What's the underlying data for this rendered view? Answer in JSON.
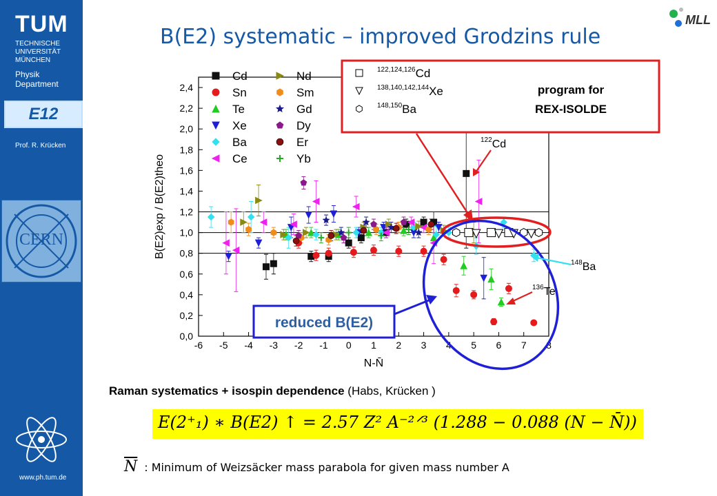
{
  "sidebar": {
    "logo": "TUM",
    "university_lines": [
      "TECHNISCHE",
      "UNIVERSITÄT",
      "MÜNCHEN"
    ],
    "dept_lines": [
      "Physik",
      "Department"
    ],
    "group_logo": "E12",
    "professor": "Prof. R. Krücken",
    "cern_logo": "CERN",
    "website": "www.ph.tum.de"
  },
  "header": {
    "title": "B(E2) systematic – improved Grodzins rule",
    "mll_logo": "MLL"
  },
  "colors": {
    "accent_blue": "#1559a6",
    "red_box": "#e02020",
    "blue_ellipse": "#1f1fd6",
    "formula_bg": "#ffff00"
  },
  "chart_data": {
    "type": "scatter",
    "xlabel": "N-N̄",
    "ylabel": "B(E2)exp / B(E2)theo",
    "xlim": [
      -6,
      8
    ],
    "ylim": [
      0.0,
      2.5
    ],
    "x_ticks": [
      -6,
      -5,
      -4,
      -3,
      -2,
      -1,
      0,
      1,
      2,
      3,
      4,
      5,
      6,
      7,
      8
    ],
    "y_ticks": [
      0.0,
      0.2,
      0.4,
      0.6,
      0.8,
      1.0,
      1.2,
      1.4,
      1.6,
      1.8,
      2.0,
      2.2,
      2.4
    ],
    "reference_lines": [
      0.8,
      1.0,
      1.2
    ],
    "legend": [
      {
        "name": "Cd",
        "marker": "square",
        "color": "#111111"
      },
      {
        "name": "Sn",
        "marker": "circle",
        "color": "#e41a1c"
      },
      {
        "name": "Te",
        "marker": "triangle-up",
        "color": "#22cc22"
      },
      {
        "name": "Xe",
        "marker": "triangle-down",
        "color": "#1f1fd6"
      },
      {
        "name": "Ba",
        "marker": "diamond",
        "color": "#33e0f0"
      },
      {
        "name": "Ce",
        "marker": "triangle-left",
        "color": "#ee22ee"
      },
      {
        "name": "Nd",
        "marker": "triangle-right",
        "color": "#8a8a10"
      },
      {
        "name": "Sm",
        "marker": "hexagon",
        "color": "#f08c1c"
      },
      {
        "name": "Gd",
        "marker": "star",
        "color": "#1a1a8c"
      },
      {
        "name": "Dy",
        "marker": "pentagon",
        "color": "#8a1a8a"
      },
      {
        "name": "Er",
        "marker": "sphere",
        "color": "#8a1010"
      },
      {
        "name": "Yb",
        "marker": "plus",
        "color": "#22aa22"
      }
    ],
    "series": [
      {
        "name": "Cd",
        "points": [
          [
            -3.3,
            0.67,
            0.12
          ],
          [
            -3.0,
            0.7,
            0.1
          ],
          [
            -1.5,
            0.77,
            0.05
          ],
          [
            -0.8,
            0.77,
            0.05
          ],
          [
            0.0,
            0.9,
            0.05
          ],
          [
            0.5,
            0.95,
            0.05
          ],
          [
            1.5,
            1.0,
            0.05
          ],
          [
            2.3,
            1.08,
            0.05
          ],
          [
            3.0,
            1.1,
            0.05
          ],
          [
            3.4,
            1.1,
            0.1
          ],
          [
            4.7,
            1.57,
            0.72
          ]
        ]
      },
      {
        "name": "Sn",
        "points": [
          [
            -2.0,
            0.9,
            0.05
          ],
          [
            -1.3,
            0.78,
            0.05
          ],
          [
            -0.8,
            0.8,
            0.05
          ],
          [
            0.2,
            0.81,
            0.05
          ],
          [
            1.0,
            0.83,
            0.05
          ],
          [
            2.0,
            0.82,
            0.05
          ],
          [
            3.0,
            0.82,
            0.05
          ],
          [
            3.8,
            0.74,
            0.05
          ],
          [
            4.3,
            0.44,
            0.06
          ],
          [
            5.0,
            0.4,
            0.04
          ],
          [
            5.8,
            0.14,
            0.03
          ],
          [
            6.4,
            0.46,
            0.05
          ],
          [
            7.4,
            0.13,
            0.02
          ]
        ]
      },
      {
        "name": "Te",
        "points": [
          [
            -2.5,
            0.98,
            0.05
          ],
          [
            -1.5,
            1.0,
            0.05
          ],
          [
            -0.4,
            0.98,
            0.05
          ],
          [
            0.8,
            1.0,
            0.05
          ],
          [
            2.2,
            1.02,
            0.05
          ],
          [
            3.4,
            0.95,
            0.05
          ],
          [
            4.6,
            0.68,
            0.09
          ],
          [
            5.7,
            0.55,
            0.1
          ],
          [
            6.1,
            0.33,
            0.04
          ]
        ]
      },
      {
        "name": "Xe",
        "points": [
          [
            -4.8,
            0.77,
            0.05
          ],
          [
            -3.6,
            0.9,
            0.05
          ],
          [
            -2.3,
            1.05,
            0.1
          ],
          [
            -1.6,
            1.17,
            0.08
          ],
          [
            -0.6,
            1.18,
            0.08
          ],
          [
            0.4,
            1.0,
            0.05
          ],
          [
            1.4,
            1.05,
            0.05
          ],
          [
            2.6,
            1.0,
            0.05
          ],
          [
            3.6,
            1.05,
            0.05
          ],
          [
            5.4,
            0.56,
            0.2
          ]
        ]
      },
      {
        "name": "Ba",
        "points": [
          [
            -5.5,
            1.15,
            0.1
          ],
          [
            -3.9,
            1.15,
            0.15
          ],
          [
            -2.4,
            0.95,
            0.1
          ],
          [
            -1.3,
            0.98,
            0.05
          ],
          [
            0.3,
            1.0,
            0.05
          ],
          [
            1.3,
            1.0,
            0.05
          ],
          [
            2.6,
            1.05,
            0.05
          ],
          [
            3.5,
            0.98,
            0.08
          ],
          [
            4.0,
            1.0,
            0.05
          ],
          [
            5.1,
            0.87,
            0.08
          ],
          [
            6.2,
            1.1,
            0.05
          ],
          [
            7.4,
            0.78,
            0.06
          ]
        ]
      },
      {
        "name": "Ce",
        "points": [
          [
            -4.9,
            0.9,
            0.3
          ],
          [
            -4.5,
            0.83,
            0.4
          ],
          [
            -3.4,
            1.1,
            0.1
          ],
          [
            -2.2,
            1.08,
            0.1
          ],
          [
            -1.3,
            1.3,
            0.2
          ],
          [
            0.3,
            1.25,
            0.1
          ],
          [
            1.5,
            1.0,
            0.05
          ],
          [
            2.5,
            1.1,
            0.05
          ],
          [
            3.0,
            1.05,
            0.05
          ],
          [
            3.4,
            0.9,
            0.2
          ],
          [
            5.2,
            1.3,
            0.4
          ]
        ]
      },
      {
        "name": "Nd",
        "points": [
          [
            -4.2,
            1.1,
            0.1
          ],
          [
            -3.6,
            1.31,
            0.15
          ],
          [
            -2.6,
            0.98,
            0.05
          ],
          [
            -1.7,
            1.0,
            0.05
          ],
          [
            -0.5,
            0.98,
            0.05
          ],
          [
            0.6,
            1.05,
            0.05
          ],
          [
            1.6,
            1.08,
            0.05
          ],
          [
            2.8,
            1.06,
            0.05
          ],
          [
            3.8,
            1.02,
            0.05
          ],
          [
            5.0,
            1.0,
            0.1
          ]
        ]
      },
      {
        "name": "Sm",
        "points": [
          [
            -4.7,
            1.1,
            0.1
          ],
          [
            -4.0,
            1.03,
            0.06
          ],
          [
            -3.0,
            1.0,
            0.05
          ],
          [
            -1.9,
            0.95,
            0.05
          ],
          [
            -0.8,
            0.93,
            0.05
          ],
          [
            1.1,
            1.03,
            0.05
          ],
          [
            2.0,
            1.05,
            0.05
          ],
          [
            3.2,
            1.03,
            0.05
          ]
        ]
      },
      {
        "name": "Gd",
        "points": [
          [
            -0.9,
            1.12,
            0.05
          ],
          [
            -0.3,
            1.0,
            0.05
          ],
          [
            0.7,
            1.1,
            0.05
          ],
          [
            1.7,
            1.05,
            0.05
          ],
          [
            2.8,
            1.0,
            0.05
          ]
        ]
      },
      {
        "name": "Dy",
        "points": [
          [
            -1.8,
            1.48,
            0.06
          ],
          [
            -2.0,
            0.97,
            0.05
          ],
          [
            -0.2,
            0.95,
            0.05
          ],
          [
            1.0,
            1.08,
            0.05
          ],
          [
            2.2,
            1.1,
            0.05
          ]
        ]
      },
      {
        "name": "Er",
        "points": [
          [
            -2.1,
            0.92,
            0.05
          ],
          [
            -0.7,
            0.97,
            0.05
          ],
          [
            0.6,
            1.02,
            0.05
          ],
          [
            1.9,
            1.04,
            0.05
          ],
          [
            3.3,
            1.08,
            0.05
          ]
        ]
      },
      {
        "name": "Yb",
        "points": [
          [
            -1.1,
            0.95,
            0.05
          ],
          [
            0.0,
            1.0,
            0.05
          ],
          [
            1.3,
            0.97,
            0.05
          ],
          [
            2.4,
            1.03,
            0.05
          ]
        ]
      }
    ],
    "rex_points": {
      "names": [
        "122,124,126Cd",
        "138,140,142,144Xe",
        "148,150Ba"
      ],
      "markers": [
        "square-open",
        "triangle-down-open",
        "hexagon-open"
      ],
      "points": [
        {
          "x": 4.3,
          "y": 1.0,
          "m": "hexagon-open"
        },
        {
          "x": 4.8,
          "y": 1.0,
          "m": "square-open"
        },
        {
          "x": 5.1,
          "y": 0.99,
          "m": "triangle-down-open"
        },
        {
          "x": 5.7,
          "y": 1.0,
          "m": "square-open"
        },
        {
          "x": 6.0,
          "y": 0.99,
          "m": "triangle-down-open"
        },
        {
          "x": 6.4,
          "y": 1.0,
          "m": "square-open"
        },
        {
          "x": 6.6,
          "y": 0.99,
          "m": "triangle-down-open"
        },
        {
          "x": 7.0,
          "y": 1.0,
          "m": "hexagon-open"
        },
        {
          "x": 7.3,
          "y": 0.99,
          "m": "triangle-down-open"
        },
        {
          "x": 7.6,
          "y": 1.0,
          "m": "hexagon-open"
        }
      ]
    },
    "annotations": {
      "program_lines": [
        "program for",
        "REX-ISOLDE"
      ],
      "cd122": {
        "mass": "122",
        "symbol": "Cd"
      },
      "ba148": {
        "mass": "148",
        "symbol": "Ba"
      },
      "te136": {
        "mass": "136",
        "symbol": "Te"
      },
      "reduced": "reduced B(E2)"
    }
  },
  "text_block": {
    "raman_bold": "Raman systematics + isospin dependence",
    "raman_rest": " (Habs, Krücken )",
    "formula": "E(2⁺₁) ∗ B(E2) ↑ = 2.57 Z² A⁻²ᐟ³ (1.288 − 0.088 (N − N̄))",
    "nbar_symbol": "N",
    "nbar_text": ": Minimum of Weizsäcker mass parabola for given mass number A"
  }
}
